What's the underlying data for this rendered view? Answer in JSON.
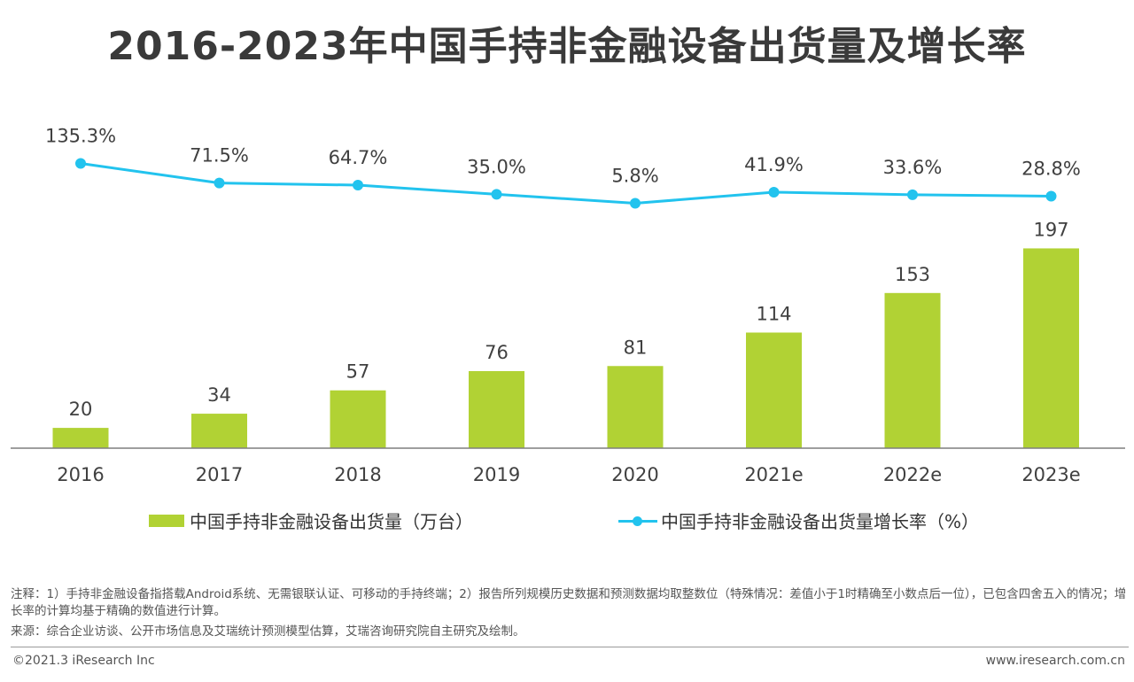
{
  "title": "2016-2023年中国手持非金融设备出货量及增长率",
  "colors": {
    "bar": "#b1d234",
    "line": "#22c3ee",
    "axis": "#7f7f7f",
    "text": "#404040"
  },
  "chart_data": {
    "type": "bar+line",
    "categories": [
      "2016",
      "2017",
      "2018",
      "2019",
      "2020",
      "2021e",
      "2022e",
      "2023e"
    ],
    "series": [
      {
        "name": "中国手持非金融设备出货量（万台）",
        "type": "bar",
        "values": [
          20,
          34,
          57,
          76,
          81,
          114,
          153,
          197
        ],
        "labels": [
          "20",
          "34",
          "57",
          "76",
          "81",
          "114",
          "153",
          "197"
        ]
      },
      {
        "name": "中国手持非金融设备出货量增长率（%）",
        "type": "line",
        "values": [
          135.3,
          71.5,
          64.7,
          35.0,
          5.8,
          41.9,
          33.6,
          28.8
        ],
        "labels": [
          "135.3%",
          "71.5%",
          "64.7%",
          "35.0%",
          "5.8%",
          "41.9%",
          "33.6%",
          "28.8%"
        ]
      }
    ],
    "grid": false,
    "legend_position": "bottom"
  },
  "legend": {
    "bar_label": "中国手持非金融设备出货量（万台）",
    "line_label": "中国手持非金融设备出货量增长率（%）"
  },
  "notes": {
    "note": "注释：1）手持非金融设备指搭载Android系统、无需银联认证、可移动的手持终端；2）报告所列规模历史数据和预测数据均取整数位（特殊情况：差值小于1时精确至小数点后一位），已包含四舍五入的情况；增长率的计算均基于精确的数值进行计算。",
    "source": "来源：综合企业访谈、公开市场信息及艾瑞统计预测模型估算，艾瑞咨询研究院自主研究及绘制。"
  },
  "footer": {
    "copyright": "©2021.3 iResearch Inc",
    "website": "www.iresearch.com.cn"
  }
}
